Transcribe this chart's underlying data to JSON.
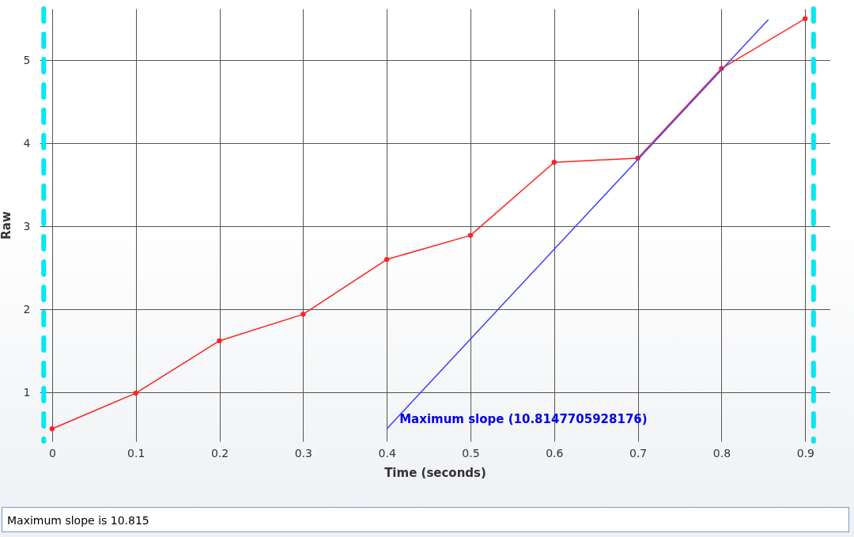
{
  "chart_data": {
    "type": "line",
    "xlabel": "Time (seconds)",
    "ylabel": "Raw",
    "x": [
      0,
      0.1,
      0.2,
      0.3,
      0.4,
      0.5,
      0.6,
      0.7,
      0.8,
      0.9
    ],
    "series": [
      {
        "color": "#ff2020",
        "marker": "circle",
        "values": [
          0.56,
          0.99,
          1.62,
          1.94,
          2.6,
          2.89,
          3.77,
          3.82,
          4.9,
          5.5
        ]
      },
      {
        "color": "#4040ff",
        "marker": "none",
        "x": [
          0.4,
          0.856
        ],
        "values": [
          0.56,
          5.49
        ]
      }
    ],
    "xlim": [
      -0.015,
      0.93
    ],
    "xticks": [
      0,
      0.1,
      0.2,
      0.3,
      0.4,
      0.5,
      0.6,
      0.7,
      0.8,
      0.9
    ],
    "ylim": [
      0.41,
      5.62
    ],
    "yticks": [
      1,
      2,
      3,
      4,
      5
    ],
    "grid": true,
    "line_style": "solid",
    "ref_lines": [
      {
        "axis": "x",
        "value": -0.01,
        "color": "#00e8f0",
        "line_style": "dashed"
      },
      {
        "axis": "x",
        "value": 0.91,
        "color": "#00e8f0",
        "line_style": "dashed"
      }
    ],
    "annotations": [
      {
        "text": "Maximum slope (10.8147705928176)",
        "x": 0.4,
        "y": 0.6
      },
      "Maximum slope is 10.815"
    ]
  }
}
